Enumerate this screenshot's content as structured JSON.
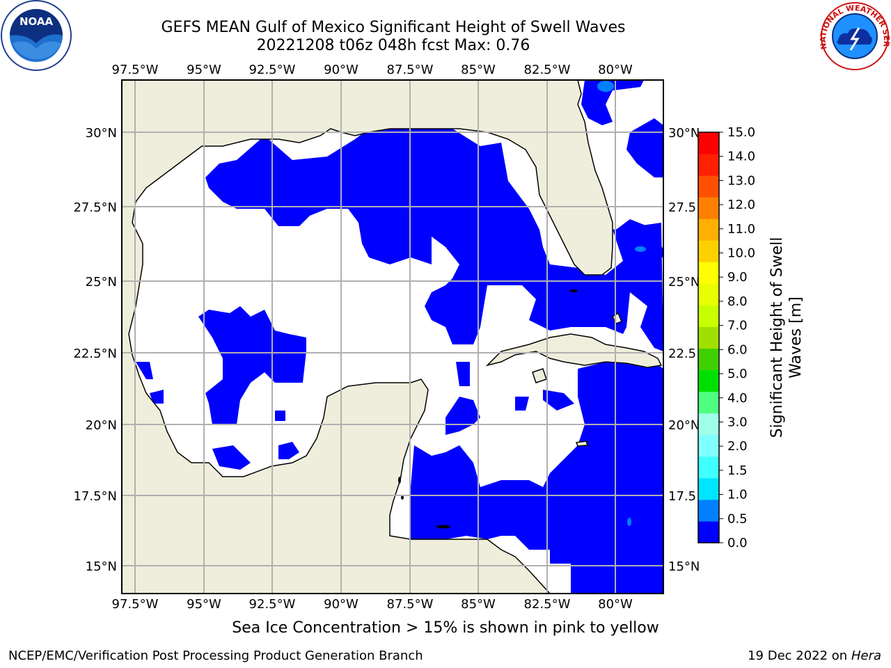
{
  "title_line1": "GEFS MEAN Gulf of Mexico Significant Height of Swell Waves",
  "title_line2": "20221208 t06z 048h fcst   Max: 0.76",
  "map": {
    "lon_labels": [
      "97.5°W",
      "95°W",
      "92.5°W",
      "90°W",
      "87.5°W",
      "85°W",
      "82.5°W",
      "80°W"
    ],
    "lat_labels_left": [
      "30°N",
      "27.5°N",
      "25°N",
      "22.5°N",
      "20°N",
      "17.5°N",
      "15°N"
    ],
    "lat_labels_right": [
      "30°N",
      "27.5",
      "25°N",
      "22.5",
      "20°N",
      "17.5",
      "15°N"
    ],
    "colors": {
      "land": "#efeedc",
      "low_swell": "#0000ff",
      "swell_0_5": "#0080ff",
      "grid": "#b0b0b0"
    }
  },
  "colorbar": {
    "label_line1": "Significant Height of Swell",
    "label_line2": "Waves [m]",
    "ticks": [
      "15.0",
      "14.0",
      "13.0",
      "12.0",
      "11.0",
      "10.0",
      "9.0",
      "8.0",
      "7.0",
      "6.0",
      "5.0",
      "4.0",
      "3.0",
      "2.0",
      "1.5",
      "1.0",
      "0.5",
      "0.0"
    ],
    "colors_bottom_to_top": [
      "#0000ff",
      "#0080ff",
      "#00e5ff",
      "#40ffff",
      "#80ffff",
      "#a0ffe8",
      "#50ff80",
      "#00e000",
      "#40d000",
      "#a0e000",
      "#c8ff00",
      "#e8ff00",
      "#ffff00",
      "#ffd000",
      "#ffb000",
      "#ff8000",
      "#ff5000",
      "#ff2000",
      "#ff0000"
    ]
  },
  "note": "Sea Ice Concentration > 15% is shown in pink to yellow",
  "footer_left": "NCEP/EMC/Verification Post Processing Product Generation Branch",
  "footer_date": "19 Dec 2022 on",
  "footer_machine": "Hera",
  "logo_noaa_text": "NOAA",
  "logo_nws_text": "NATIONAL WEATHER SERVICE"
}
